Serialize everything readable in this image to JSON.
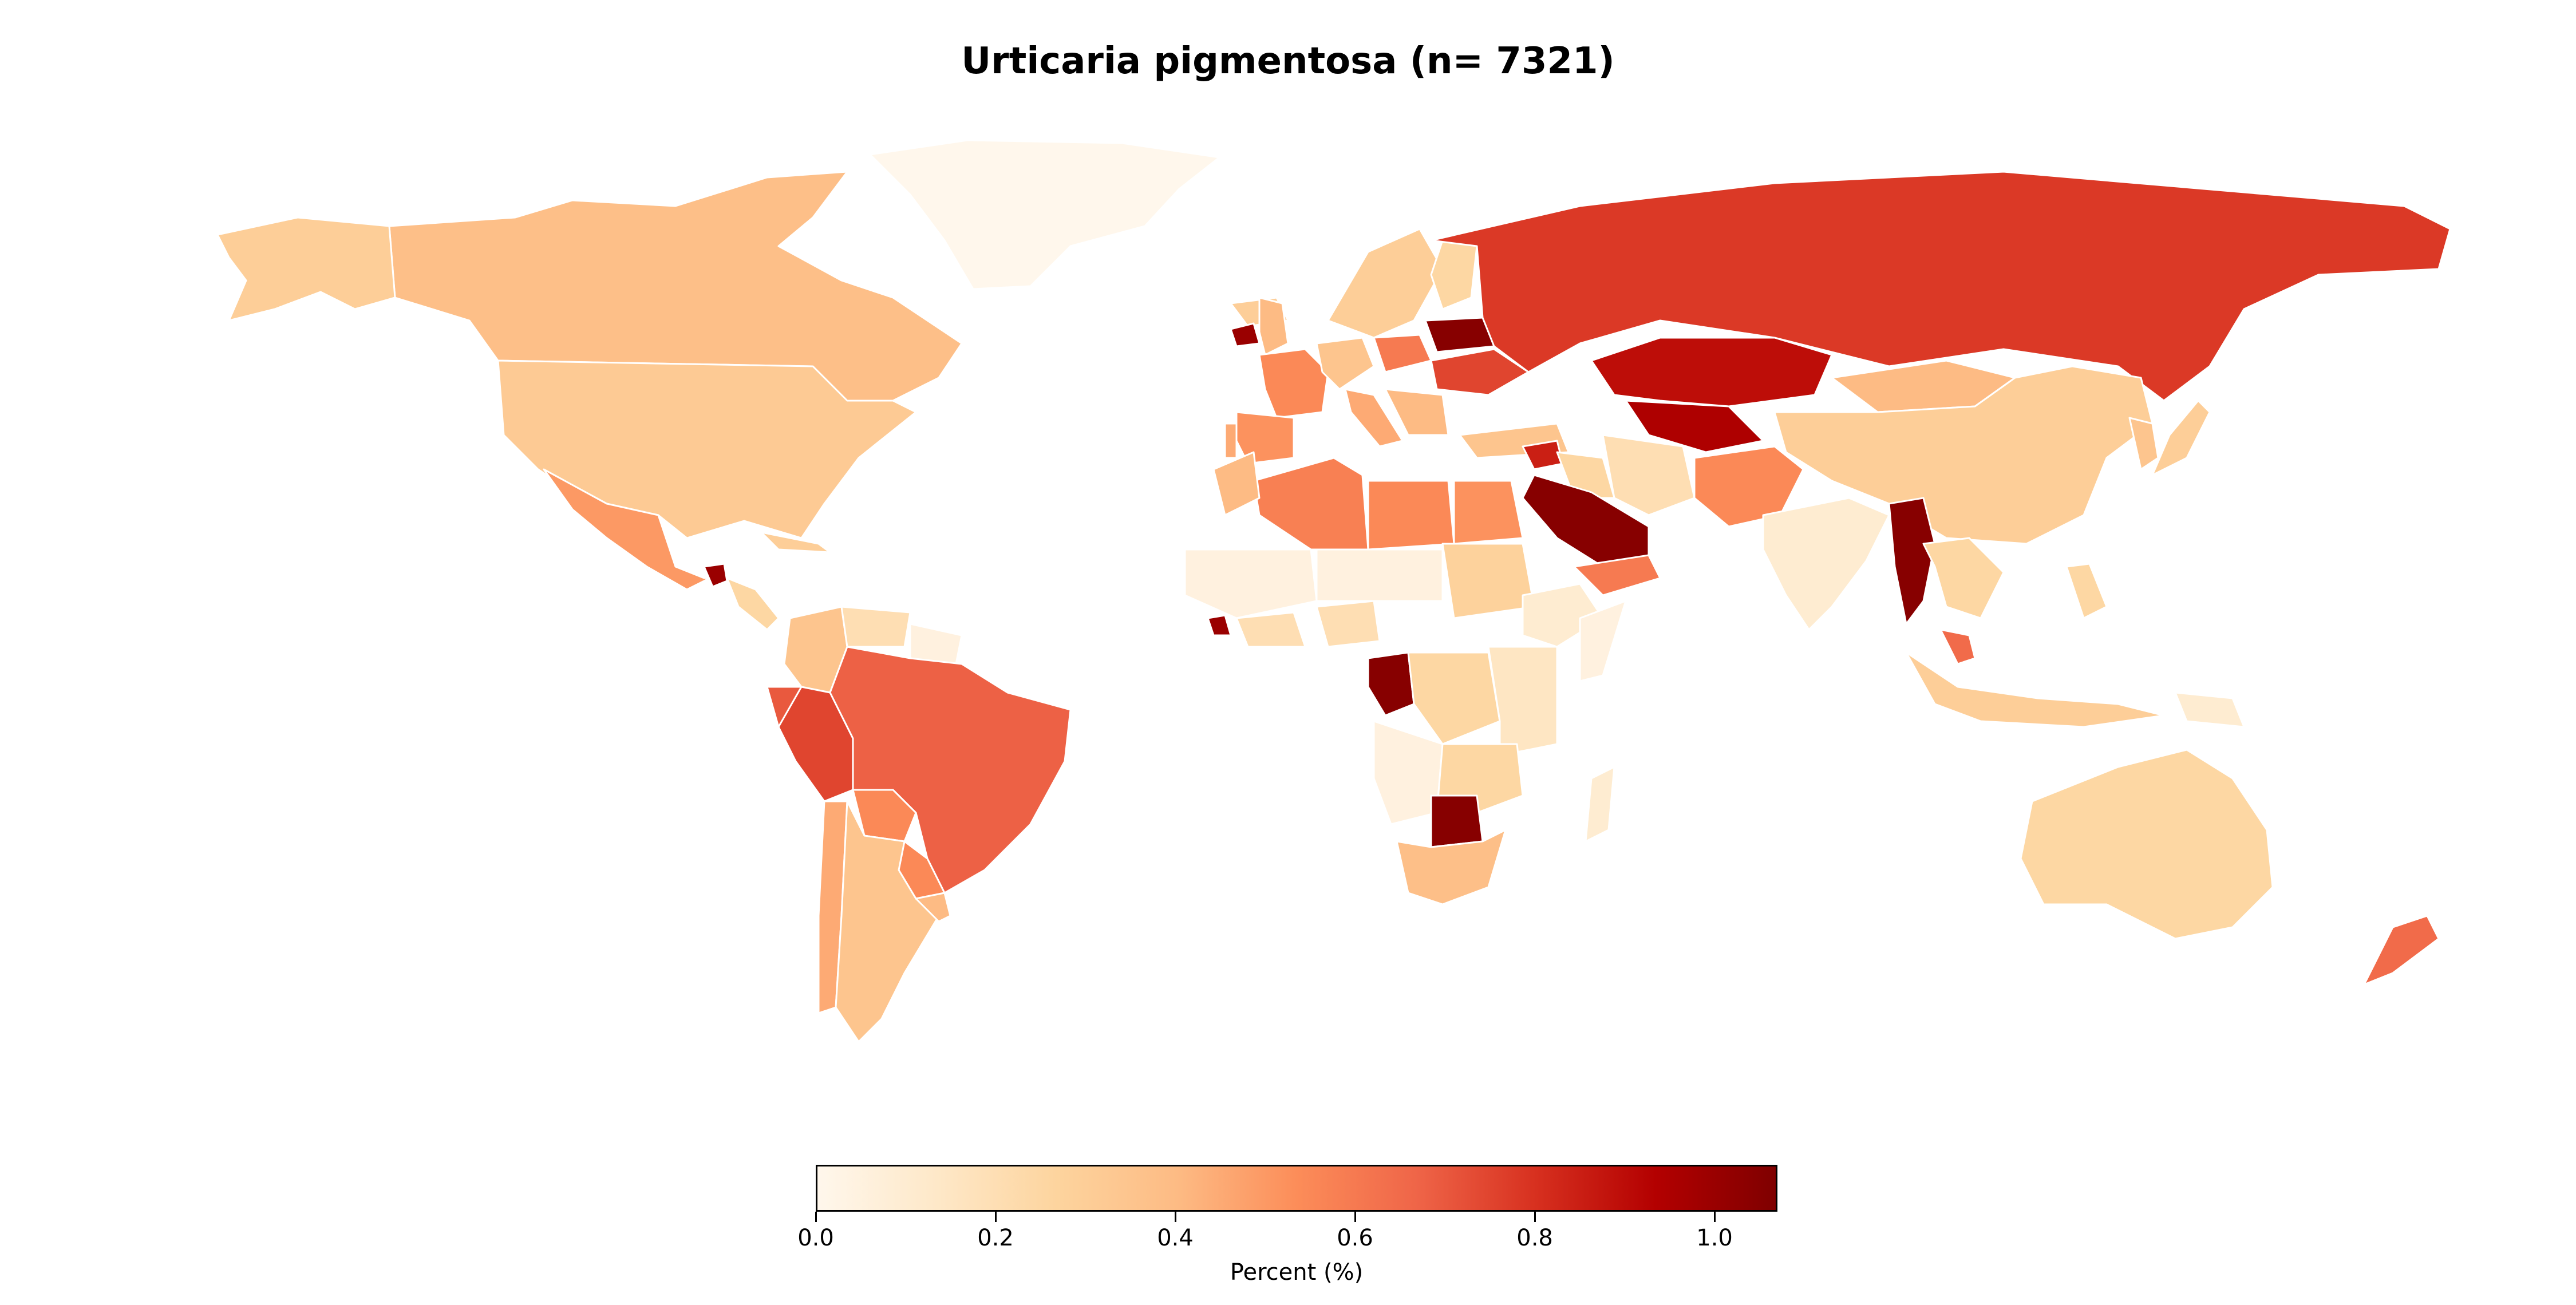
{
  "chart_data": {
    "type": "choropleth",
    "title": "Urticaria pigmentosa (n= 7321)",
    "colorbar": {
      "label": "Percent (%)",
      "range": [
        0.0,
        1.07
      ],
      "ticks": [
        "0.0",
        "0.2",
        "0.4",
        "0.6",
        "0.8",
        "1.0"
      ],
      "tick_values": [
        0.0,
        0.2,
        0.4,
        0.6,
        0.8,
        1.0
      ],
      "colormap": "OrRd"
    },
    "regions": [
      {
        "name": "Greenland",
        "value": 0.0
      },
      {
        "name": "Canada",
        "value": 0.38
      },
      {
        "name": "Alaska",
        "value": 0.3
      },
      {
        "name": "United States",
        "value": 0.32
      },
      {
        "name": "Mexico",
        "value": 0.5
      },
      {
        "name": "Guatemala",
        "value": 1.0
      },
      {
        "name": "Central America",
        "value": 0.25
      },
      {
        "name": "Cuba",
        "value": 0.3
      },
      {
        "name": "Colombia",
        "value": 0.35
      },
      {
        "name": "Venezuela",
        "value": 0.2
      },
      {
        "name": "Guyana/Suriname",
        "value": 0.05
      },
      {
        "name": "Ecuador",
        "value": 0.7
      },
      {
        "name": "Peru",
        "value": 0.75
      },
      {
        "name": "Brazil",
        "value": 0.68
      },
      {
        "name": "Bolivia",
        "value": 0.55
      },
      {
        "name": "Paraguay",
        "value": 0.55
      },
      {
        "name": "Chile",
        "value": 0.45
      },
      {
        "name": "Argentina",
        "value": 0.35
      },
      {
        "name": "Uruguay",
        "value": 0.4
      },
      {
        "name": "Iceland",
        "value": 0.3
      },
      {
        "name": "Ireland",
        "value": 1.0
      },
      {
        "name": "United Kingdom",
        "value": 0.4
      },
      {
        "name": "Norway/Sweden",
        "value": 0.3
      },
      {
        "name": "Finland",
        "value": 0.25
      },
      {
        "name": "France",
        "value": 0.55
      },
      {
        "name": "Spain",
        "value": 0.52
      },
      {
        "name": "Portugal",
        "value": 0.45
      },
      {
        "name": "Germany",
        "value": 0.35
      },
      {
        "name": "Poland",
        "value": 0.6
      },
      {
        "name": "Belarus",
        "value": 1.05
      },
      {
        "name": "Ukraine",
        "value": 0.75
      },
      {
        "name": "Italy",
        "value": 0.45
      },
      {
        "name": "Balkans",
        "value": 0.4
      },
      {
        "name": "Turkey",
        "value": 0.35
      },
      {
        "name": "Russia",
        "value": 0.78
      },
      {
        "name": "Kazakhstan",
        "value": 0.9
      },
      {
        "name": "Uzbekistan/Turkmenistan",
        "value": 0.95
      },
      {
        "name": "Mongolia",
        "value": 0.4
      },
      {
        "name": "China",
        "value": 0.3
      },
      {
        "name": "Korea",
        "value": 0.35
      },
      {
        "name": "Japan",
        "value": 0.3
      },
      {
        "name": "Syria",
        "value": 0.85
      },
      {
        "name": "Iraq",
        "value": 0.25
      },
      {
        "name": "Iran",
        "value": 0.2
      },
      {
        "name": "Saudi Arabia",
        "value": 1.05
      },
      {
        "name": "Yemen/Oman",
        "value": 0.6
      },
      {
        "name": "Afghanistan/Pakistan",
        "value": 0.55
      },
      {
        "name": "India",
        "value": 0.1
      },
      {
        "name": "Myanmar",
        "value": 1.05
      },
      {
        "name": "Thailand/Vietnam",
        "value": 0.25
      },
      {
        "name": "Malaysia",
        "value": 0.65
      },
      {
        "name": "Indonesia",
        "value": 0.3
      },
      {
        "name": "Philippines",
        "value": 0.25
      },
      {
        "name": "Papua New Guinea",
        "value": 0.1
      },
      {
        "name": "Australia",
        "value": 0.25
      },
      {
        "name": "New Zealand",
        "value": 0.65
      },
      {
        "name": "Algeria",
        "value": 0.58
      },
      {
        "name": "Morocco",
        "value": 0.4
      },
      {
        "name": "Libya",
        "value": 0.55
      },
      {
        "name": "Egypt",
        "value": 0.52
      },
      {
        "name": "West Sahel",
        "value": 0.05
      },
      {
        "name": "Niger/Chad",
        "value": 0.05
      },
      {
        "name": "Sudan",
        "value": 0.28
      },
      {
        "name": "Ethiopia",
        "value": 0.1
      },
      {
        "name": "Somalia",
        "value": 0.05
      },
      {
        "name": "Nigeria",
        "value": 0.2
      },
      {
        "name": "Ghana/Ivory Coast",
        "value": 0.2
      },
      {
        "name": "Liberia",
        "value": 1.0
      },
      {
        "name": "Congo",
        "value": 1.05
      },
      {
        "name": "DR Congo",
        "value": 0.25
      },
      {
        "name": "East Africa",
        "value": 0.15
      },
      {
        "name": "Angola",
        "value": 0.05
      },
      {
        "name": "Zambia/Zimbabwe",
        "value": 0.25
      },
      {
        "name": "Botswana",
        "value": 1.05
      },
      {
        "name": "South Africa",
        "value": 0.38
      },
      {
        "name": "Madagascar",
        "value": 0.1
      }
    ]
  }
}
